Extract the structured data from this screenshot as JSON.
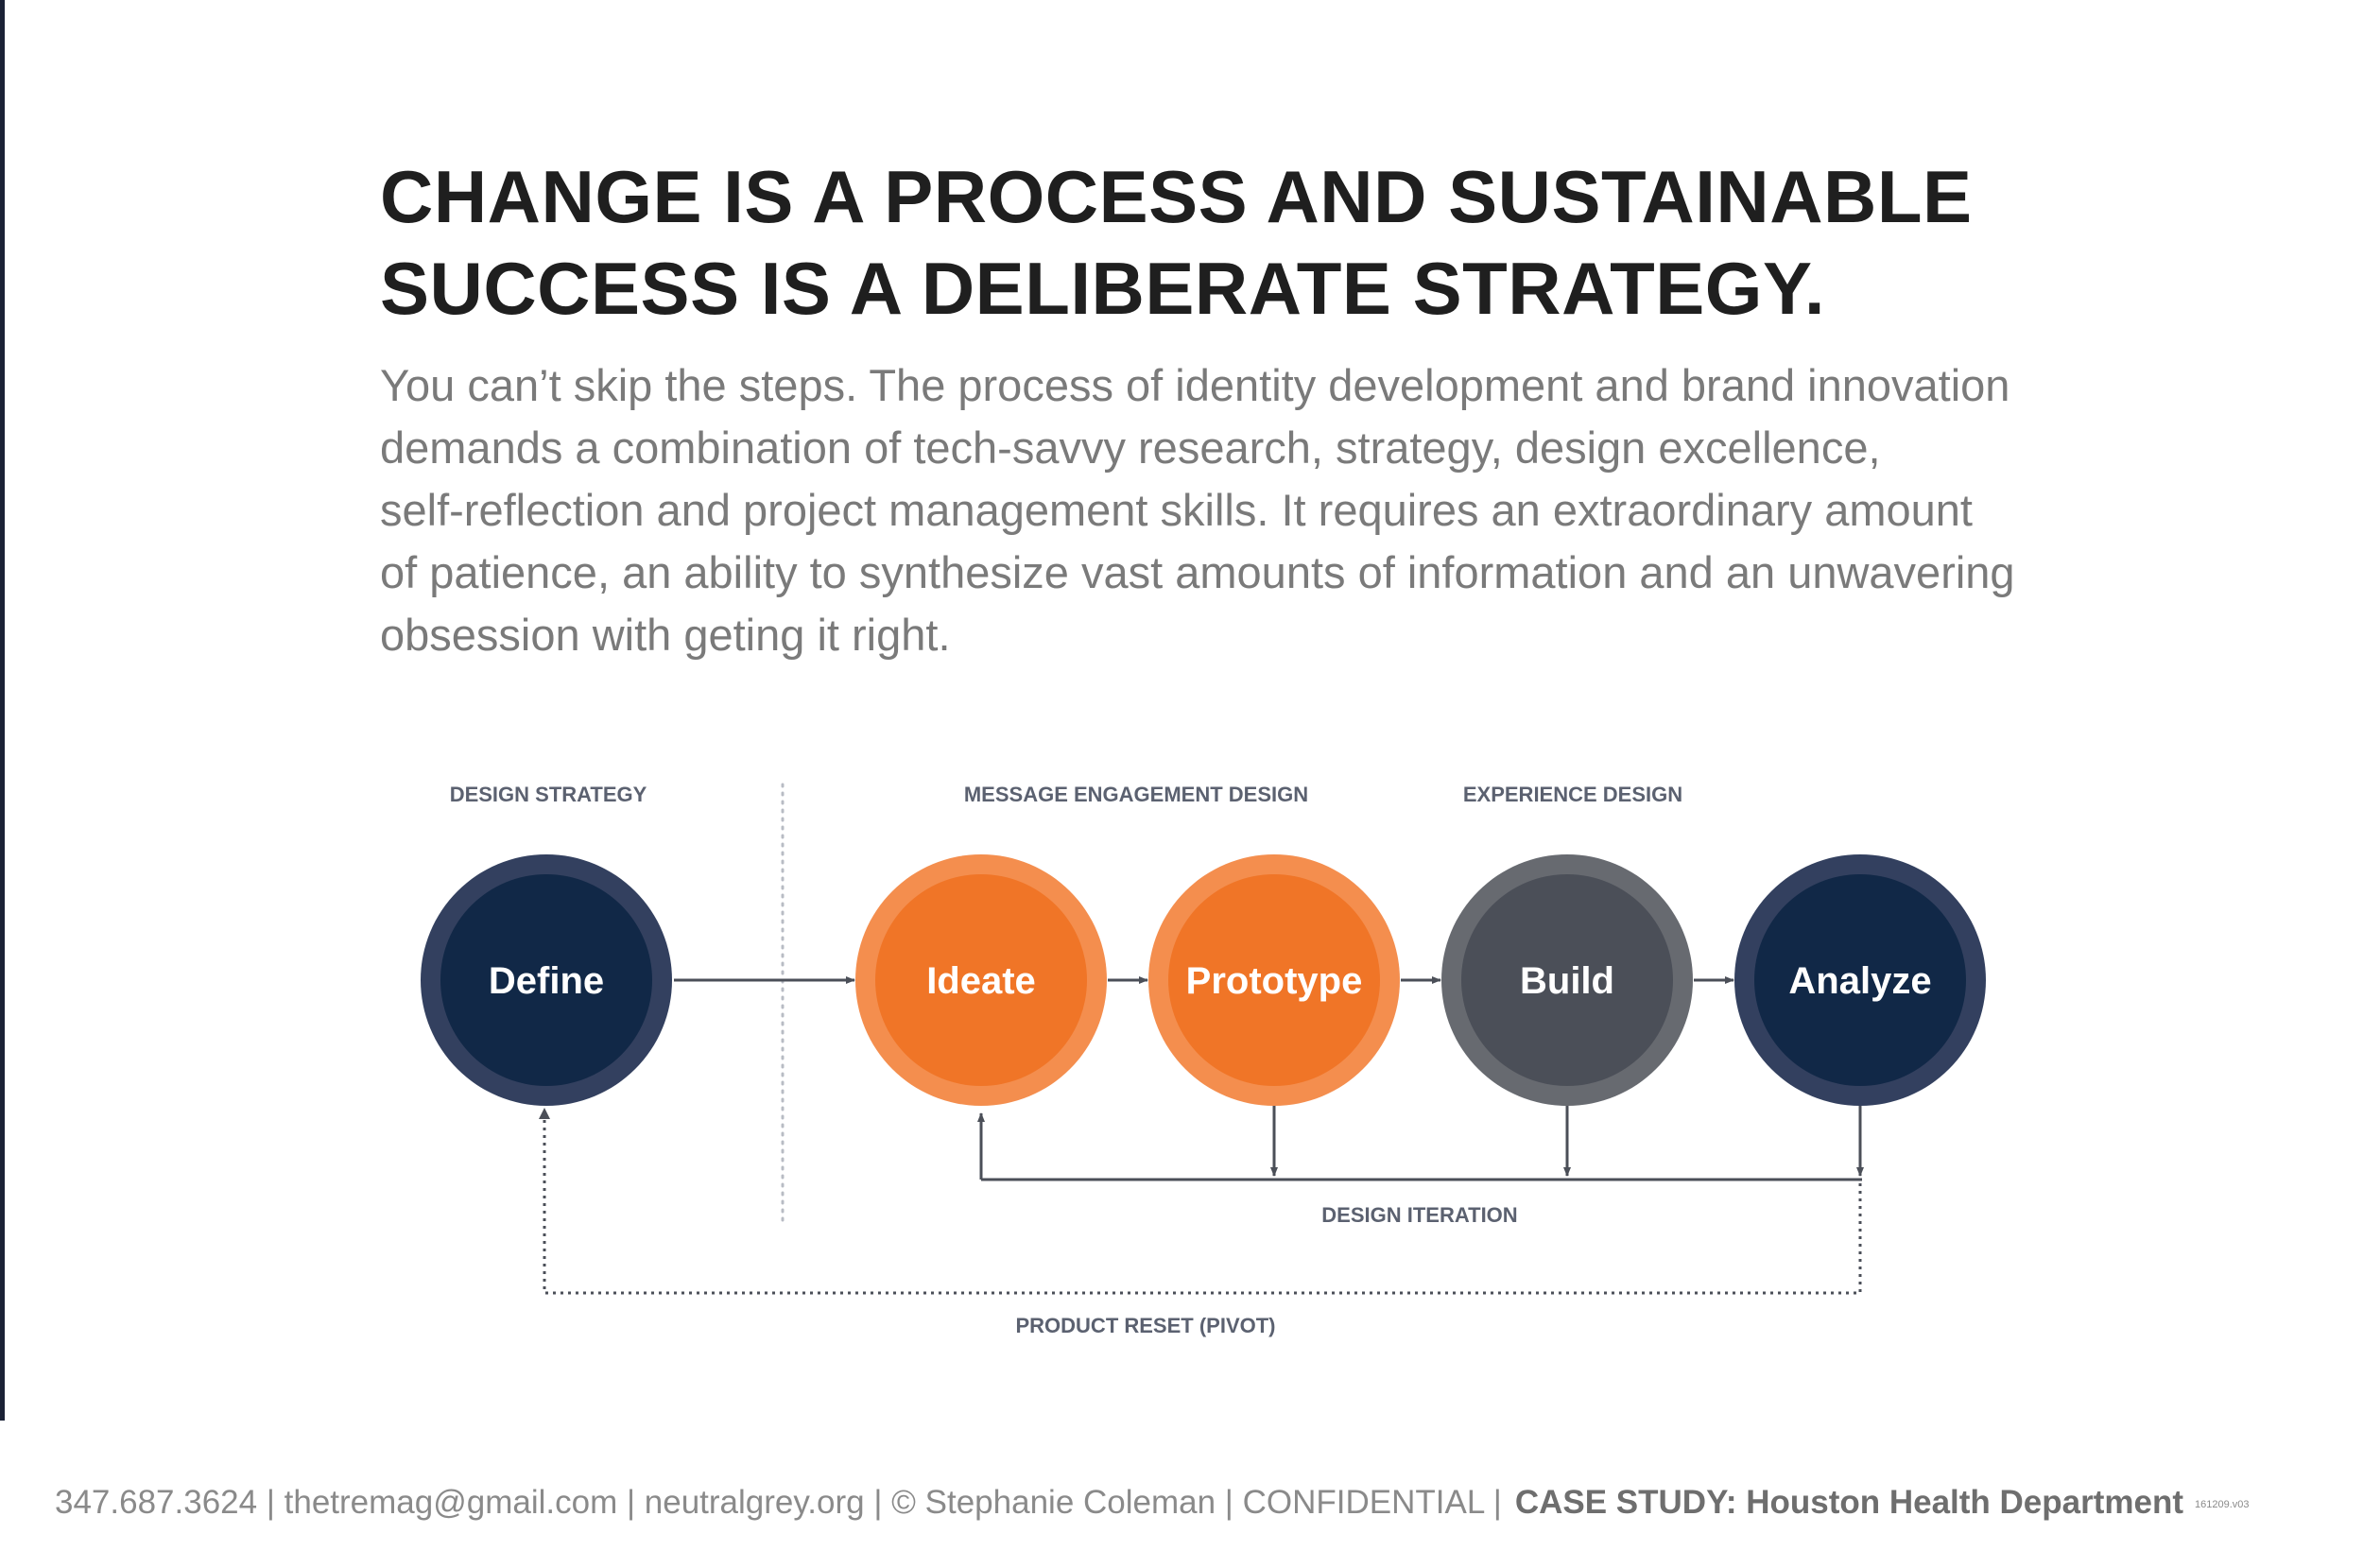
{
  "heading": {
    "line1": "CHANGE IS A PROCESS AND SUSTAINABLE",
    "line2": "SUCCESS IS A DELIBERATE STRATEGY."
  },
  "lead": {
    "line1": "You can’t skip the steps. The process of identity development and brand innovation",
    "line2": "demands a combination of tech-savvy research, strategy, design excellence,",
    "line3": "self-reflection and project management skills. It requires an extraordinary amount",
    "line4": "of patience, an ability to synthesize vast amounts of information and an unwavering",
    "line5": "obsession with geting it right."
  },
  "diagram": {
    "sections": {
      "design_strategy": "DESIGN STRATEGY",
      "message_engagement": "MESSAGE ENGAGEMENT DESIGN",
      "experience": "EXPERIENCE DESIGN"
    },
    "nodes": {
      "define": "Define",
      "ideate": "Ideate",
      "prototype": "Prototype",
      "build": "Build",
      "analyze": "Analyze"
    },
    "loops": {
      "iteration": "DESIGN ITERATION",
      "reset": "PRODUCT RESET (PIVOT)"
    }
  },
  "footer": {
    "contact": "347.687.3624 | thetremag@gmail.com | neutralgrey.org | © Stephanie Coleman | CONFIDENTIAL |",
    "case_study": "CASE STUDY: Houston Health Department",
    "version": "161209.v03"
  },
  "colors": {
    "navy": "#112847",
    "navy_ring": "#33405f",
    "orange": "#f07527",
    "orange_ring": "#f48e4e",
    "grey": "#4b4f58",
    "grey_ring": "#676a70",
    "connector": "#4b4f58"
  }
}
